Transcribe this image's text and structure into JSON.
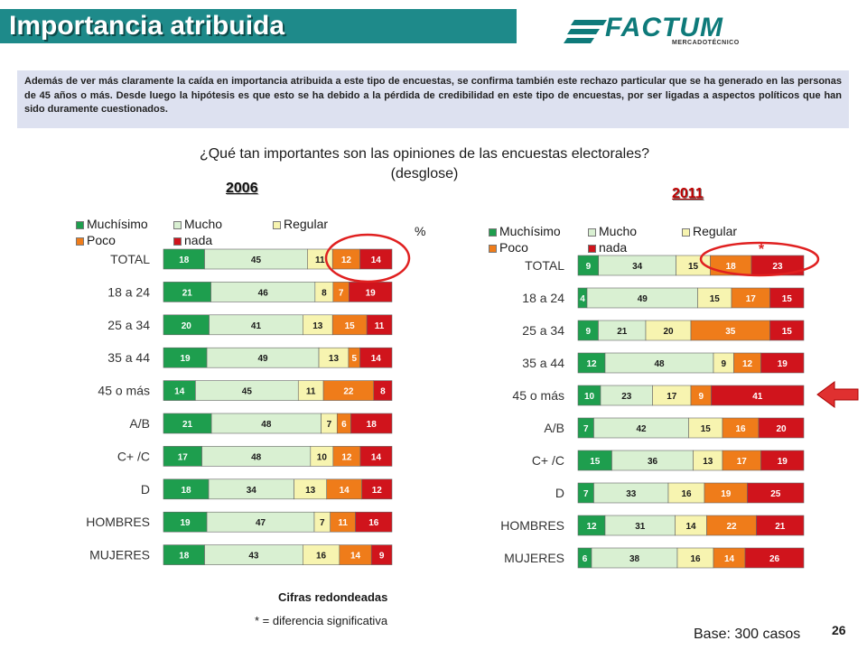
{
  "header": {
    "title": "Importancia atribuida"
  },
  "logo": {
    "name": "FACTUM",
    "tagline": "MERCADOTÉCNICO"
  },
  "intro_text": "Además de ver más claramente la caída en importancia atribuida a este tipo de encuestas, se confirma también este rechazo particular que se ha generado en las personas de 45 años o más. Desde luego la hipótesis es que esto se ha debido a la pérdida de credibilidad en este tipo de encuestas, por ser ligadas a aspectos políticos que han sido duramente cuestionados.",
  "question_line1": "¿Qué tan importantes son las opiniones de las encuestas electorales?",
  "question_line2": "(desglose)",
  "unit_label": "%",
  "significance_mark": "*",
  "colors": {
    "muchisimo": "#1e9e4e",
    "mucho": "#d9f0d2",
    "regular": "#f7f4b0",
    "poco": "#ef7c1a",
    "nada": "#d0141c",
    "title_bar": "#1e8a8a",
    "highlight": "#e02020"
  },
  "chart_data": [
    {
      "type": "bar",
      "orientation": "horizontal",
      "stacked": true,
      "title": "2006",
      "unit": "%",
      "legend_position": "top-left",
      "categories": [
        "TOTAL",
        "18 a 24",
        "25 a 34",
        "35 a 44",
        "45 o más",
        "A/B",
        "C+ /C",
        "D",
        "HOMBRES",
        "MUJERES"
      ],
      "series": [
        {
          "name": "Muchísimo",
          "values": [
            18,
            21,
            20,
            19,
            14,
            21,
            17,
            18,
            19,
            18
          ]
        },
        {
          "name": "Mucho",
          "values": [
            45,
            46,
            41,
            49,
            45,
            48,
            48,
            34,
            47,
            43
          ]
        },
        {
          "name": "Regular",
          "values": [
            11,
            8,
            13,
            13,
            11,
            7,
            10,
            13,
            7,
            16
          ]
        },
        {
          "name": "Poco",
          "values": [
            12,
            7,
            15,
            5,
            22,
            6,
            12,
            14,
            11,
            14
          ]
        },
        {
          "name": "nada",
          "values": [
            14,
            19,
            11,
            14,
            8,
            18,
            14,
            12,
            16,
            9
          ]
        }
      ],
      "highlighted": [
        "TOTAL"
      ]
    },
    {
      "type": "bar",
      "orientation": "horizontal",
      "stacked": true,
      "title": "2011",
      "unit": "%",
      "legend_position": "top-left",
      "categories": [
        "TOTAL",
        "18 a 24",
        "25 a 34",
        "35 a 44",
        "45 o más",
        "A/B",
        "C+ /C",
        "D",
        "HOMBRES",
        "MUJERES"
      ],
      "series": [
        {
          "name": "Muchísimo",
          "values": [
            9,
            4,
            9,
            12,
            10,
            7,
            15,
            7,
            12,
            6
          ]
        },
        {
          "name": "Mucho",
          "values": [
            34,
            49,
            21,
            48,
            23,
            42,
            36,
            33,
            31,
            38
          ]
        },
        {
          "name": "Regular",
          "values": [
            15,
            15,
            20,
            9,
            17,
            15,
            13,
            16,
            14,
            16
          ]
        },
        {
          "name": "Poco",
          "values": [
            18,
            17,
            35,
            12,
            9,
            16,
            17,
            19,
            22,
            14
          ]
        },
        {
          "name": "nada",
          "values": [
            23,
            15,
            15,
            19,
            41,
            20,
            19,
            25,
            21,
            26
          ]
        }
      ],
      "highlighted": [
        "TOTAL",
        "45 o más"
      ]
    }
  ],
  "footer": {
    "rounded_note": "Cifras redondeadas",
    "significance_note": "* = diferencia significativa",
    "base": "Base: 300 casos",
    "page_number": "26"
  }
}
